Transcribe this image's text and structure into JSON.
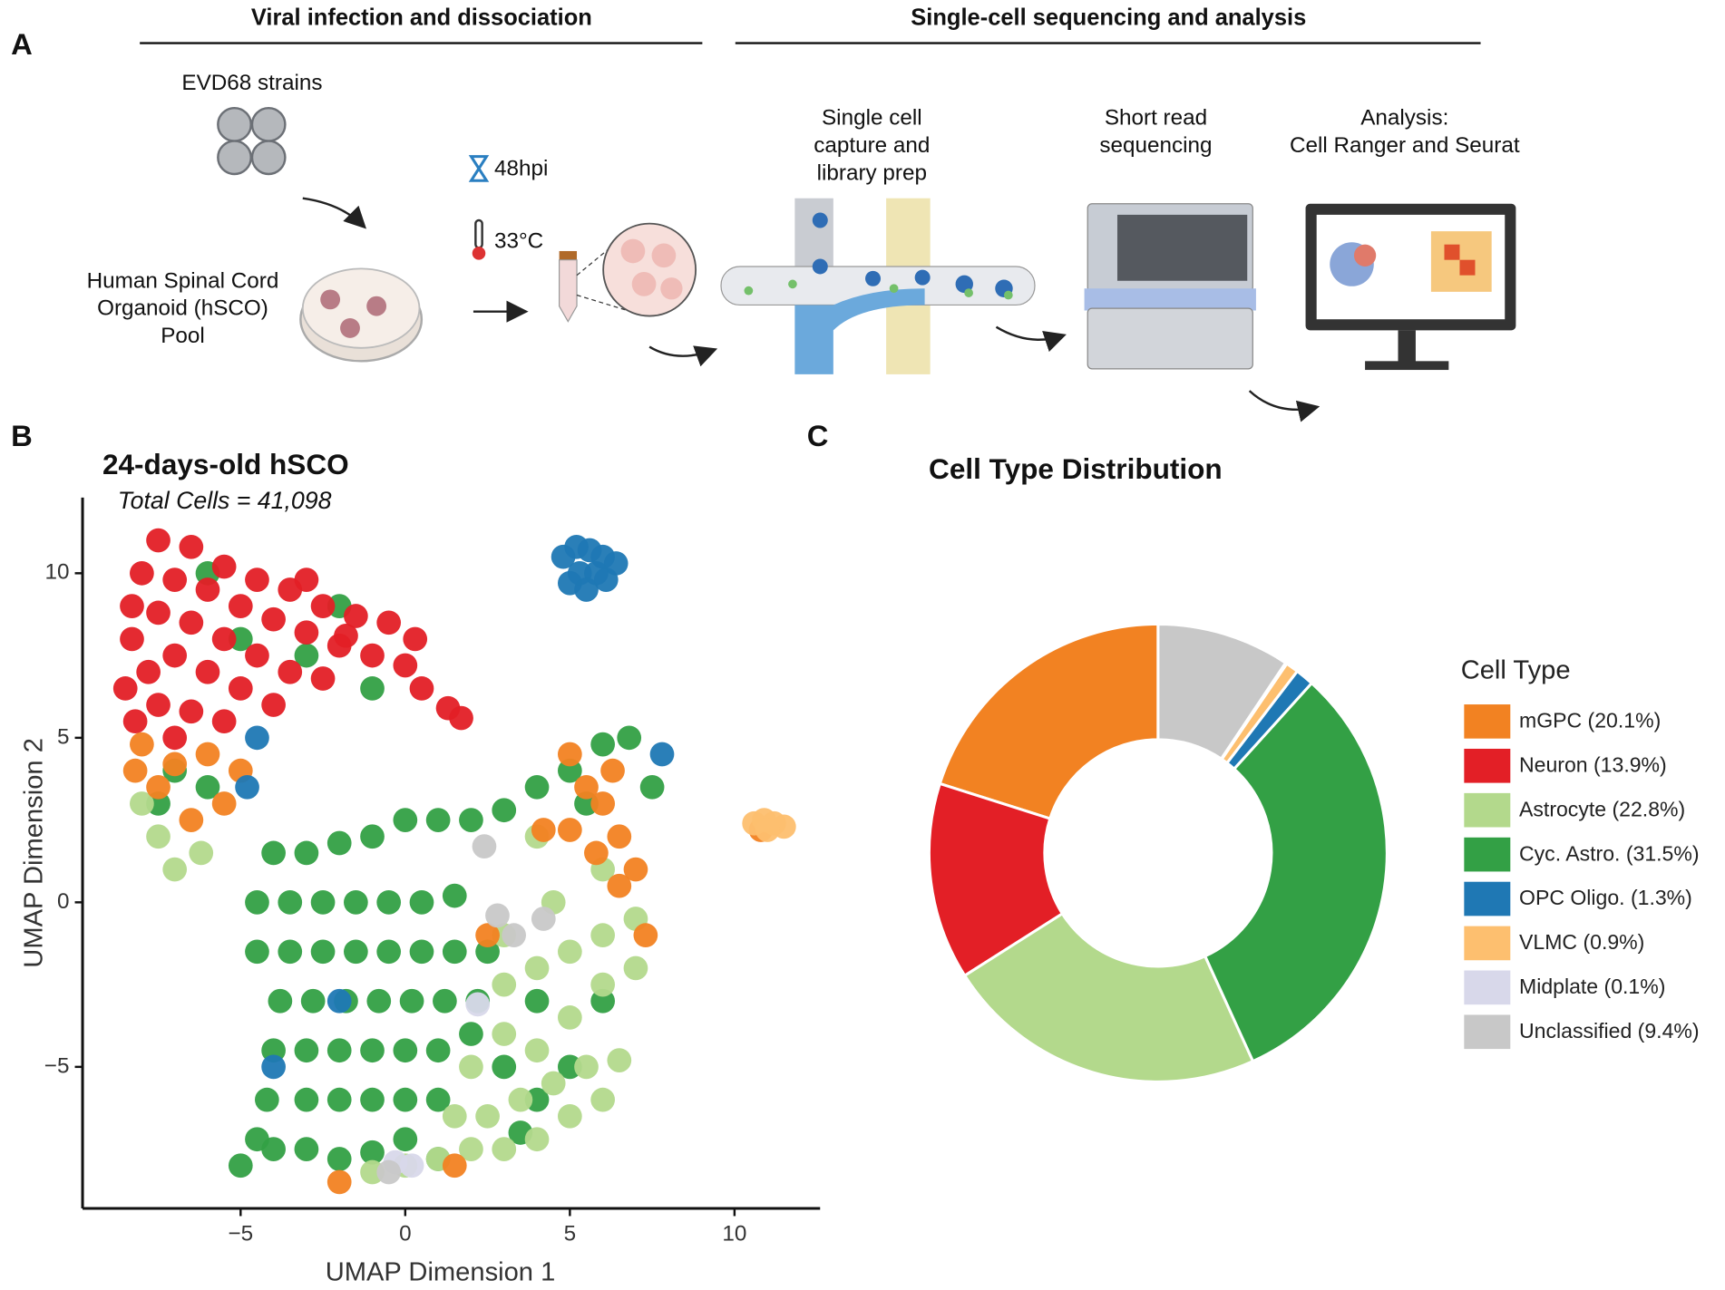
{
  "panel_a": {
    "label": "A",
    "headers": [
      "Viral infection and dissociation",
      "Single-cell sequencing and analysis"
    ],
    "virus": "EVD68 strains",
    "organoid": [
      "Human Spinal Cord",
      "Organoid (hSCO)",
      "Pool"
    ],
    "time": "48hpi",
    "temperature": "33°C",
    "steps": [
      [
        "Single cell",
        "capture and",
        "library prep"
      ],
      [
        "Short read",
        "sequencing"
      ],
      [
        "Analysis:",
        "Cell Ranger and Seurat"
      ]
    ]
  },
  "chart_data": [
    {
      "type": "scatter",
      "panel_label": "B",
      "title": "24-days-old hSCO",
      "subtitle": "Total Cells = 41,098",
      "x_label": "UMAP Dimension 1",
      "y_label": "UMAP Dimension 2",
      "xlim": [
        -9.8,
        12.6
      ],
      "ylim": [
        -9.3,
        12.3
      ],
      "xticks": [
        {
          "value": -5,
          "label": "−5"
        },
        0,
        5,
        10
      ],
      "yticks": [
        {
          "value": -5,
          "label": "−5"
        },
        0,
        5,
        10
      ],
      "series": [
        {
          "color": "#33a045",
          "x": [
            -4,
            -3,
            -2,
            -1,
            0,
            1,
            -4.2,
            -3,
            -2,
            -1,
            0,
            1,
            -4,
            -3,
            -2,
            -1,
            0,
            1,
            2,
            -3.8,
            -2.8,
            -1.8,
            -0.8,
            0.2,
            1.2,
            2.2,
            -4.5,
            -3.5,
            -2.5,
            -1.5,
            -0.5,
            0.5,
            1.5,
            2.5,
            -4.5,
            -3.5,
            -2.5,
            -1.5,
            -0.5,
            0.5,
            1.5,
            -4,
            -3,
            -2,
            -1,
            0,
            1,
            2,
            3,
            4,
            5,
            6,
            6.8,
            5.5,
            7.5,
            3,
            4,
            5,
            4,
            6,
            3.5,
            -7,
            -7.5,
            -6,
            -5,
            -3,
            -2,
            -6,
            -1,
            -5,
            -4.5
          ],
          "values": [
            -7.5,
            -7.5,
            -7.8,
            -7.6,
            -7.2,
            -7.8,
            -6,
            -6,
            -6,
            -6,
            -6,
            -6,
            -4.5,
            -4.5,
            -4.5,
            -4.5,
            -4.5,
            -4.5,
            -4,
            -3,
            -3,
            -3,
            -3,
            -3,
            -3,
            -3,
            -1.5,
            -1.5,
            -1.5,
            -1.5,
            -1.5,
            -1.5,
            -1.5,
            -1.5,
            0,
            0,
            0,
            0,
            0,
            0,
            0.2,
            1.5,
            1.5,
            1.8,
            2,
            2.5,
            2.5,
            2.5,
            2.8,
            3.5,
            4,
            4.8,
            5,
            3,
            3.5,
            -5,
            -6,
            -5,
            -3,
            -3,
            -7,
            4,
            3,
            3.5,
            8,
            7.5,
            9,
            10,
            6.5,
            -8,
            -7.2
          ]
        },
        {
          "color": "#b3d98c",
          "x": [
            1,
            2,
            3,
            4,
            5,
            6,
            1.5,
            2.5,
            3.5,
            4.5,
            5.5,
            6.5,
            2,
            3,
            4,
            5,
            6,
            7,
            3,
            4,
            5,
            6,
            7,
            3,
            4.5,
            6,
            -7.5,
            -7,
            -6.2,
            -8,
            4,
            0,
            -1
          ],
          "values": [
            -7.8,
            -7.5,
            -7.5,
            -7.2,
            -6.5,
            -6,
            -6.5,
            -6.5,
            -6,
            -5.5,
            -5,
            -4.8,
            -5,
            -4,
            -4.5,
            -3.5,
            -2.5,
            -2,
            -2.5,
            -2,
            -1.5,
            -1,
            -0.5,
            -1,
            0,
            1,
            2,
            1,
            1.5,
            3,
            2,
            -8,
            -8.2
          ]
        },
        {
          "color": "#e31f26",
          "x": [
            -7.5,
            -6.5,
            -5.5,
            -4.5,
            -3.5,
            -2.5,
            -1.5,
            -0.5,
            0.3,
            -8,
            -7,
            -6,
            -5,
            -4,
            -3,
            -2,
            -1,
            0,
            -8.3,
            -7.5,
            -6.5,
            -5.5,
            -4.5,
            -3.5,
            -2.5,
            -8.3,
            -7.8,
            -7,
            -6,
            -5,
            -4,
            -8.5,
            -7.5,
            -6.5,
            -5.5,
            -8.2,
            -7,
            0.5,
            1.3,
            1.7,
            -3,
            -1.8
          ],
          "values": [
            11,
            10.8,
            10.2,
            9.8,
            9.5,
            9,
            8.7,
            8.5,
            8,
            10,
            9.8,
            9.5,
            9,
            8.6,
            8.2,
            7.8,
            7.5,
            7.2,
            9,
            8.8,
            8.5,
            8,
            7.5,
            7,
            6.8,
            8,
            7,
            7.5,
            7,
            6.5,
            6,
            6.5,
            6,
            5.8,
            5.5,
            5.5,
            5,
            6.5,
            5.9,
            5.6,
            9.8,
            8.1
          ]
        },
        {
          "color": "#f28222",
          "x": [
            -8,
            -7,
            -6,
            -5,
            -7.5,
            -6.5,
            -5.5,
            -8.2,
            5,
            5.5,
            6,
            6.5,
            5.8,
            6.5,
            5,
            6.3,
            4.2,
            7,
            7.3,
            10.8,
            1.5,
            -2,
            2.5
          ],
          "values": [
            4.8,
            4.2,
            4.5,
            4,
            3.5,
            2.5,
            3,
            4,
            4.5,
            3.5,
            3,
            2,
            1.5,
            0.5,
            2.2,
            4,
            2.2,
            1,
            -1,
            2.2,
            -8,
            -8.5,
            -1
          ]
        },
        {
          "color": "#1f78b4",
          "x": [
            4.8,
            5.2,
            5.6,
            6,
            6.4,
            5.3,
            5.8,
            5,
            5.5,
            6.1,
            -4.5,
            -4.8,
            -2,
            -4,
            7.8
          ],
          "values": [
            10.5,
            10.8,
            10.7,
            10.5,
            10.3,
            10,
            10,
            9.7,
            9.5,
            9.8,
            5,
            3.5,
            -3,
            -5,
            4.5
          ]
        },
        {
          "color": "#fdbf6f",
          "x": [
            10.6,
            10.9,
            11.2,
            11.5,
            11
          ],
          "values": [
            2.4,
            2.5,
            2.4,
            2.3,
            2.2
          ]
        },
        {
          "color": "#d8d8ea",
          "x": [
            -0.3,
            0.2,
            2.2
          ],
          "values": [
            -7.9,
            -8,
            -3.1
          ]
        },
        {
          "color": "#c8c8c8",
          "x": [
            2.8,
            3.3,
            4.2,
            -0.5,
            2.4
          ],
          "values": [
            -0.4,
            -1,
            -0.5,
            -8.2,
            1.7
          ]
        }
      ]
    },
    {
      "type": "pie",
      "donut": true,
      "panel_label": "C",
      "title": "Cell Type Distribution",
      "legend_title": "Cell Type",
      "legend": "right",
      "categories": [
        "mGPC (20.1%)",
        "Neuron (13.9%)",
        "Astrocyte (22.8%)",
        "Cyc. Astro. (31.5%)",
        "OPC Oligo. (1.3%)",
        "VLMC (0.9%)",
        "Midplate (0.1%)",
        "Unclassified (9.4%)"
      ],
      "values": [
        20.1,
        13.9,
        22.8,
        31.5,
        1.3,
        0.9,
        0.1,
        9.4
      ],
      "colors": [
        "#f28222",
        "#e31f26",
        "#b3d98c",
        "#33a045",
        "#1f78b4",
        "#fdbf6f",
        "#d8d8ea",
        "#c8c8c8"
      ]
    }
  ]
}
